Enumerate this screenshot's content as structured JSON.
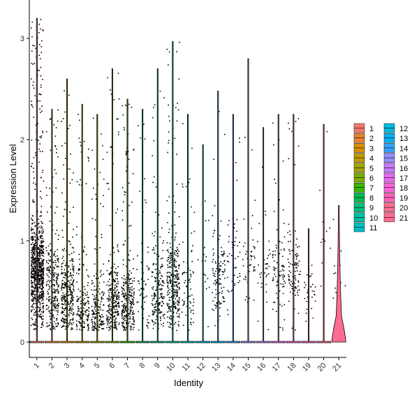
{
  "chart_data": {
    "type": "violin",
    "xlabel": "Identity",
    "ylabel": "Expression Level",
    "ylim": [
      -0.15,
      3.3
    ],
    "yticks": [
      0,
      1,
      2,
      3
    ],
    "categories": [
      "1",
      "2",
      "3",
      "4",
      "5",
      "6",
      "7",
      "8",
      "9",
      "10",
      "11",
      "12",
      "13",
      "14",
      "15",
      "16",
      "17",
      "18",
      "19",
      "20",
      "21"
    ],
    "colors": [
      "#F8766D",
      "#EA8331",
      "#D89000",
      "#C09B00",
      "#A3A500",
      "#7CAE00",
      "#39B600",
      "#00BB4E",
      "#00BF7D",
      "#00C1A3",
      "#00BFC4",
      "#00BAE0",
      "#00B0F6",
      "#35A2FF",
      "#9590FF",
      "#C77CFF",
      "#E76BF3",
      "#FA62DB",
      "#FF62BC",
      "#FF6C91",
      "#FF6C91"
    ],
    "groups": [
      {
        "name": "1",
        "max": 3.2,
        "n": 900,
        "spread": 0.52,
        "mode": 0.7
      },
      {
        "name": "2",
        "max": 2.3,
        "n": 260,
        "spread": 0.5,
        "mode": 0.55
      },
      {
        "name": "3",
        "max": 2.6,
        "n": 320,
        "spread": 0.5,
        "mode": 0.5
      },
      {
        "name": "4",
        "max": 2.35,
        "n": 170,
        "spread": 0.5,
        "mode": 0.3
      },
      {
        "name": "5",
        "max": 2.25,
        "n": 190,
        "spread": 0.5,
        "mode": 0.3
      },
      {
        "name": "6",
        "max": 2.7,
        "n": 260,
        "spread": 0.5,
        "mode": 0.4
      },
      {
        "name": "7",
        "max": 2.4,
        "n": 280,
        "spread": 0.5,
        "mode": 0.35
      },
      {
        "name": "8",
        "max": 2.3,
        "n": 60,
        "spread": 0.45,
        "mode": 0.5
      },
      {
        "name": "9",
        "max": 2.7,
        "n": 190,
        "spread": 0.5,
        "mode": 0.45
      },
      {
        "name": "10",
        "max": 2.97,
        "n": 300,
        "spread": 0.5,
        "mode": 0.55
      },
      {
        "name": "11",
        "max": 2.25,
        "n": 70,
        "spread": 0.45,
        "mode": 0.5
      },
      {
        "name": "12",
        "max": 1.95,
        "n": 18,
        "spread": 0.4,
        "mode": 0.8
      },
      {
        "name": "13",
        "max": 2.48,
        "n": 120,
        "spread": 0.45,
        "mode": 0.65
      },
      {
        "name": "14",
        "max": 2.25,
        "n": 50,
        "spread": 0.45,
        "mode": 0.8
      },
      {
        "name": "15",
        "max": 2.8,
        "n": 50,
        "spread": 0.45,
        "mode": 0.8
      },
      {
        "name": "16",
        "max": 2.12,
        "n": 35,
        "spread": 0.45,
        "mode": 0.7
      },
      {
        "name": "17",
        "max": 2.25,
        "n": 90,
        "spread": 0.45,
        "mode": 0.7
      },
      {
        "name": "18",
        "max": 2.25,
        "n": 100,
        "spread": 0.45,
        "mode": 0.7
      },
      {
        "name": "19",
        "max": 1.12,
        "n": 30,
        "spread": 0.3,
        "mode": 0.5
      },
      {
        "name": "20",
        "max": 2.15,
        "n": 12,
        "spread": 0.4,
        "mode": 1.0
      },
      {
        "name": "21",
        "max": 1.35,
        "n": 14,
        "spread": 0.35,
        "mode": 0.6
      }
    ],
    "legend": {
      "position": "right",
      "columns": [
        [
          "1",
          "2",
          "3",
          "4",
          "5",
          "6",
          "7",
          "8",
          "9",
          "10",
          "11"
        ],
        [
          "12",
          "13",
          "14",
          "15",
          "16",
          "17",
          "18",
          "19",
          "20",
          "21"
        ]
      ]
    },
    "grid": false
  }
}
